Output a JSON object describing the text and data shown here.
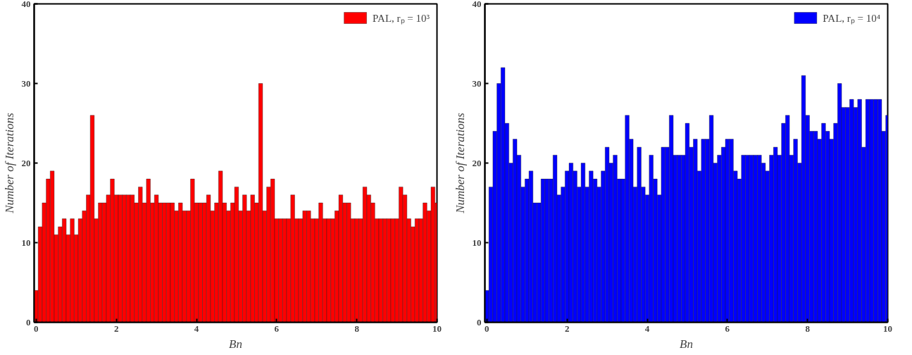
{
  "chart_data": [
    {
      "type": "bar",
      "xlabel": "Bn",
      "ylabel": "Number of Iterations",
      "xlim": [
        -0.05,
        10
      ],
      "xticks": [
        0,
        2,
        4,
        6,
        8,
        10
      ],
      "ylim": [
        0,
        40
      ],
      "yticks": [
        0,
        10,
        20,
        30,
        40
      ],
      "grid": false,
      "legend": "top right",
      "x": [
        0.0,
        0.1,
        0.2,
        0.3,
        0.4,
        0.5,
        0.6,
        0.7,
        0.8,
        0.9,
        1.0,
        1.1,
        1.2,
        1.3,
        1.4,
        1.5,
        1.6,
        1.7,
        1.8,
        1.9,
        2.0,
        2.1,
        2.2,
        2.3,
        2.4,
        2.5,
        2.6,
        2.7,
        2.8,
        2.9,
        3.0,
        3.1,
        3.2,
        3.3,
        3.4,
        3.5,
        3.6,
        3.7,
        3.8,
        3.9,
        4.0,
        4.1,
        4.2,
        4.3,
        4.4,
        4.5,
        4.6,
        4.7,
        4.8,
        4.9,
        5.0,
        5.1,
        5.2,
        5.3,
        5.4,
        5.5,
        5.6,
        5.7,
        5.8,
        5.9,
        6.0,
        6.1,
        6.2,
        6.3,
        6.4,
        6.5,
        6.6,
        6.7,
        6.8,
        6.9,
        7.0,
        7.1,
        7.2,
        7.3,
        7.4,
        7.5,
        7.6,
        7.7,
        7.8,
        7.9,
        8.0,
        8.1,
        8.2,
        8.3,
        8.4,
        8.5,
        8.6,
        8.7,
        8.8,
        8.9,
        9.0,
        9.1,
        9.2,
        9.3,
        9.4,
        9.5,
        9.6,
        9.7,
        9.8,
        9.9,
        10.0
      ],
      "series": [
        {
          "name": "PAL, rₚ = 10³",
          "color": "#ff0000",
          "values": [
            4,
            12,
            15,
            18,
            19,
            11,
            12,
            13,
            11,
            13,
            11,
            13,
            14,
            16,
            26,
            13,
            15,
            15,
            16,
            18,
            16,
            16,
            16,
            16,
            16,
            15,
            17,
            15,
            18,
            15,
            16,
            15,
            15,
            15,
            15,
            14,
            15,
            14,
            14,
            18,
            15,
            15,
            15,
            16,
            14,
            15,
            19,
            15,
            14,
            15,
            17,
            14,
            16,
            14,
            16,
            15,
            30,
            14,
            17,
            18,
            13,
            13,
            13,
            13,
            16,
            13,
            13,
            14,
            14,
            13,
            13,
            15,
            13,
            13,
            13,
            14,
            16,
            15,
            15,
            13,
            13,
            13,
            17,
            16,
            15,
            13,
            13,
            13,
            13,
            13,
            13,
            17,
            16,
            13,
            12,
            13,
            13,
            15,
            14,
            17,
            15
          ]
        }
      ]
    },
    {
      "type": "bar",
      "xlabel": "Bn",
      "ylabel": "Number of Iterations",
      "xlim": [
        -0.05,
        10
      ],
      "xticks": [
        0,
        2,
        4,
        6,
        8,
        10
      ],
      "ylim": [
        0,
        40
      ],
      "yticks": [
        0,
        10,
        20,
        30,
        40
      ],
      "grid": false,
      "legend": "top right",
      "x": [
        0.0,
        0.1,
        0.2,
        0.3,
        0.4,
        0.5,
        0.6,
        0.7,
        0.8,
        0.9,
        1.0,
        1.1,
        1.2,
        1.3,
        1.4,
        1.5,
        1.6,
        1.7,
        1.8,
        1.9,
        2.0,
        2.1,
        2.2,
        2.3,
        2.4,
        2.5,
        2.6,
        2.7,
        2.8,
        2.9,
        3.0,
        3.1,
        3.2,
        3.3,
        3.4,
        3.5,
        3.6,
        3.7,
        3.8,
        3.9,
        4.0,
        4.1,
        4.2,
        4.3,
        4.4,
        4.5,
        4.6,
        4.7,
        4.8,
        4.9,
        5.0,
        5.1,
        5.2,
        5.3,
        5.4,
        5.5,
        5.6,
        5.7,
        5.8,
        5.9,
        6.0,
        6.1,
        6.2,
        6.3,
        6.4,
        6.5,
        6.6,
        6.7,
        6.8,
        6.9,
        7.0,
        7.1,
        7.2,
        7.3,
        7.4,
        7.5,
        7.6,
        7.7,
        7.8,
        7.9,
        8.0,
        8.1,
        8.2,
        8.3,
        8.4,
        8.5,
        8.6,
        8.7,
        8.8,
        8.9,
        9.0,
        9.1,
        9.2,
        9.3,
        9.4,
        9.5,
        9.6,
        9.7,
        9.8,
        9.9,
        10.0
      ],
      "series": [
        {
          "name": "PAL, rₚ = 10⁴",
          "color": "#0000ff",
          "values": [
            4,
            17,
            24,
            30,
            32,
            25,
            20,
            23,
            21,
            17,
            18,
            19,
            15,
            15,
            18,
            18,
            18,
            21,
            16,
            17,
            19,
            20,
            19,
            17,
            20,
            17,
            19,
            18,
            17,
            19,
            22,
            20,
            21,
            18,
            18,
            26,
            23,
            17,
            22,
            17,
            16,
            21,
            18,
            16,
            22,
            22,
            26,
            21,
            21,
            21,
            25,
            22,
            23,
            19,
            23,
            23,
            26,
            20,
            21,
            22,
            23,
            23,
            19,
            18,
            21,
            21,
            21,
            21,
            21,
            20,
            19,
            21,
            22,
            21,
            25,
            26,
            21,
            23,
            20,
            31,
            26,
            24,
            24,
            23,
            25,
            24,
            23,
            25,
            30,
            27,
            27,
            28,
            27,
            28,
            22,
            28,
            28,
            28,
            28,
            24,
            26
          ]
        }
      ]
    }
  ]
}
